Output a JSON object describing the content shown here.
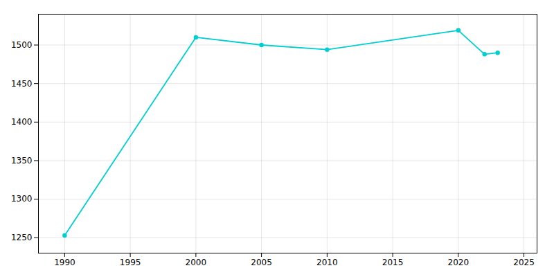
{
  "chart_data": {
    "type": "line",
    "x": [
      1990,
      2000,
      2005,
      2010,
      2020,
      2022,
      2023
    ],
    "values": [
      1253,
      1510,
      1500,
      1494,
      1519,
      1488,
      1490
    ],
    "color": "#00CED1",
    "marker": "circle",
    "xlim": [
      1988,
      2026
    ],
    "ylim": [
      1230,
      1540
    ],
    "xticks": [
      1990,
      1995,
      2000,
      2005,
      2010,
      2015,
      2020,
      2025
    ],
    "yticks": [
      1250,
      1300,
      1350,
      1400,
      1450,
      1500
    ],
    "grid": true
  }
}
